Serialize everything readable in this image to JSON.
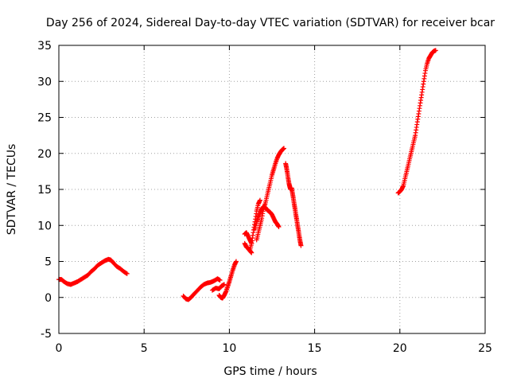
{
  "chart_data": {
    "type": "scatter",
    "title": "Day 256 of 2024, Sidereal Day-to-day VTEC variation (SDTVAR) for receiver bcar",
    "xlabel": "GPS time / hours",
    "ylabel": "SDTVAR / TECUs",
    "xlim": [
      0,
      25
    ],
    "ylim": [
      -5,
      35
    ],
    "xticks": [
      0,
      5,
      10,
      15,
      20,
      25
    ],
    "yticks": [
      -5,
      0,
      5,
      10,
      15,
      20,
      25,
      30,
      35
    ],
    "grid": true,
    "marker": "+",
    "series": [
      {
        "name": "SDTVAR",
        "color": "#ff0000",
        "segments": [
          [
            [
              0.0,
              2.5
            ],
            [
              0.15,
              2.5
            ],
            [
              0.3,
              2.2
            ],
            [
              0.5,
              1.9
            ],
            [
              0.7,
              1.8
            ],
            [
              0.9,
              2.0
            ],
            [
              1.1,
              2.2
            ],
            [
              1.3,
              2.5
            ],
            [
              1.5,
              2.8
            ],
            [
              1.7,
              3.1
            ],
            [
              1.9,
              3.6
            ],
            [
              2.1,
              4.0
            ],
            [
              2.3,
              4.5
            ],
            [
              2.5,
              4.8
            ],
            [
              2.7,
              5.1
            ],
            [
              2.9,
              5.3
            ],
            [
              3.05,
              5.2
            ],
            [
              3.2,
              4.8
            ],
            [
              3.4,
              4.3
            ],
            [
              3.6,
              4.0
            ],
            [
              3.8,
              3.6
            ],
            [
              4.0,
              3.3
            ]
          ],
          [
            [
              7.3,
              0.2
            ],
            [
              7.45,
              -0.2
            ],
            [
              7.6,
              -0.3
            ],
            [
              7.75,
              0.0
            ],
            [
              7.9,
              0.4
            ],
            [
              8.1,
              0.9
            ],
            [
              8.3,
              1.4
            ],
            [
              8.5,
              1.8
            ],
            [
              8.7,
              2.0
            ],
            [
              8.9,
              2.1
            ],
            [
              9.1,
              2.3
            ],
            [
              9.3,
              2.6
            ],
            [
              9.45,
              2.4
            ]
          ],
          [
            [
              9.0,
              1.0
            ],
            [
              9.2,
              1.3
            ],
            [
              9.4,
              1.2
            ],
            [
              9.55,
              1.6
            ],
            [
              9.7,
              1.8
            ]
          ],
          [
            [
              9.4,
              0.3
            ],
            [
              9.5,
              0.0
            ],
            [
              9.6,
              -0.1
            ],
            [
              9.7,
              0.3
            ],
            [
              9.8,
              0.8
            ],
            [
              9.9,
              1.5
            ],
            [
              10.0,
              2.2
            ],
            [
              10.1,
              3.0
            ],
            [
              10.2,
              3.8
            ],
            [
              10.3,
              4.5
            ],
            [
              10.4,
              5.0
            ]
          ],
          [
            [
              10.9,
              8.8
            ],
            [
              11.0,
              9.0
            ],
            [
              11.1,
              8.5
            ],
            [
              11.2,
              8.0
            ],
            [
              11.3,
              7.5
            ]
          ],
          [
            [
              10.9,
              7.5
            ],
            [
              11.0,
              7.0
            ],
            [
              11.1,
              6.8
            ],
            [
              11.2,
              6.5
            ],
            [
              11.3,
              6.2
            ]
          ],
          [
            [
              11.2,
              6.5
            ],
            [
              11.3,
              7.5
            ],
            [
              11.4,
              9.0
            ],
            [
              11.5,
              10.5
            ],
            [
              11.6,
              12.0
            ],
            [
              11.7,
              13.0
            ],
            [
              11.8,
              13.5
            ]
          ],
          [
            [
              11.5,
              9.5
            ],
            [
              11.6,
              10.5
            ],
            [
              11.7,
              11.2
            ],
            [
              11.8,
              11.8
            ],
            [
              11.9,
              12.3
            ],
            [
              12.0,
              12.6
            ],
            [
              12.1,
              12.5
            ],
            [
              12.2,
              12.2
            ],
            [
              12.3,
              12.0
            ],
            [
              12.4,
              11.8
            ],
            [
              12.5,
              11.5
            ],
            [
              12.6,
              11.0
            ],
            [
              12.7,
              10.5
            ],
            [
              12.8,
              10.2
            ],
            [
              12.9,
              9.8
            ]
          ],
          [
            [
              11.6,
              8.0
            ],
            [
              11.7,
              9.0
            ],
            [
              11.8,
              10.0
            ],
            [
              11.9,
              11.0
            ],
            [
              12.0,
              12.3
            ],
            [
              12.1,
              13.0
            ],
            [
              12.2,
              14.0
            ],
            [
              12.3,
              15.0
            ],
            [
              12.4,
              16.0
            ],
            [
              12.5,
              17.0
            ],
            [
              12.6,
              17.8
            ],
            [
              12.7,
              18.6
            ],
            [
              12.8,
              19.3
            ],
            [
              12.9,
              19.8
            ],
            [
              13.0,
              20.2
            ],
            [
              13.1,
              20.5
            ],
            [
              13.2,
              20.7
            ]
          ],
          [
            [
              13.3,
              18.6
            ],
            [
              13.35,
              18.0
            ],
            [
              13.4,
              17.3
            ],
            [
              13.45,
              16.5
            ],
            [
              13.5,
              15.8
            ],
            [
              13.55,
              15.3
            ],
            [
              13.6,
              15.0
            ],
            [
              13.65,
              15.2
            ],
            [
              13.7,
              14.5
            ],
            [
              13.75,
              13.8
            ],
            [
              13.8,
              13.0
            ],
            [
              13.85,
              12.3
            ],
            [
              13.9,
              11.5
            ],
            [
              13.95,
              10.8
            ],
            [
              14.0,
              10.0
            ],
            [
              14.05,
              9.3
            ],
            [
              14.1,
              8.5
            ],
            [
              14.15,
              7.8
            ],
            [
              14.2,
              7.2
            ]
          ],
          [
            [
              19.9,
              14.5
            ],
            [
              20.0,
              14.7
            ],
            [
              20.1,
              15.0
            ],
            [
              20.2,
              15.5
            ],
            [
              20.3,
              16.5
            ],
            [
              20.4,
              17.5
            ],
            [
              20.5,
              18.5
            ],
            [
              20.6,
              19.5
            ],
            [
              20.7,
              20.5
            ],
            [
              20.8,
              21.5
            ],
            [
              20.9,
              22.5
            ],
            [
              21.0,
              24.0
            ],
            [
              21.1,
              25.5
            ],
            [
              21.2,
              27.0
            ],
            [
              21.3,
              28.5
            ],
            [
              21.4,
              30.0
            ],
            [
              21.5,
              31.5
            ],
            [
              21.6,
              32.5
            ],
            [
              21.7,
              33.2
            ],
            [
              21.8,
              33.6
            ],
            [
              21.9,
              34.0
            ],
            [
              22.0,
              34.2
            ],
            [
              22.1,
              34.3
            ]
          ]
        ]
      }
    ]
  }
}
